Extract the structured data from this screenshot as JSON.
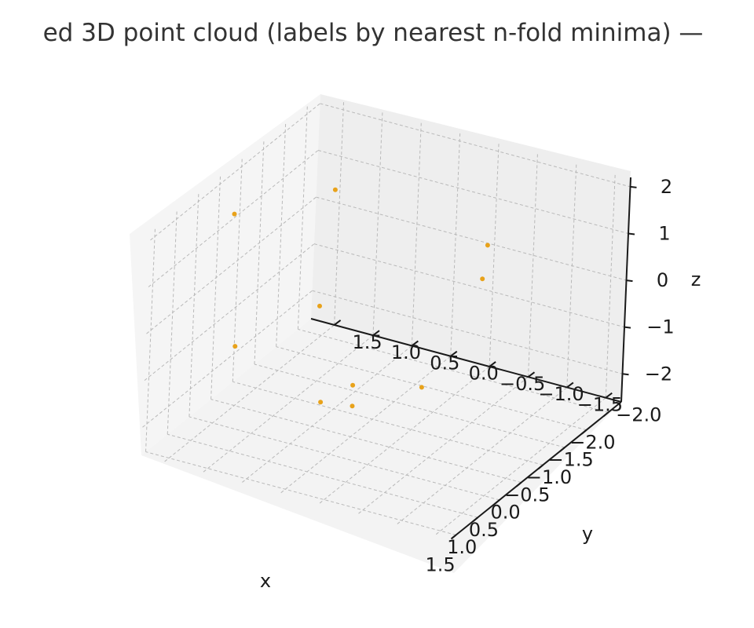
{
  "chart_data": {
    "type": "scatter",
    "projection": "3d",
    "title": "ed 3D point cloud (labels by nearest n-fold minima) —",
    "xlabel": "x",
    "ylabel": "y",
    "zlabel": "z",
    "xlim": [
      -2.3,
      1.6
    ],
    "ylim": [
      -2.2,
      1.8
    ],
    "zlim": [
      -2.6,
      2.2
    ],
    "x_ticks": [
      "−2.0",
      "−1.5",
      "−1.0",
      "−0.5",
      "0.0",
      "0.5",
      "1.0",
      "1.5"
    ],
    "y_ticks": [
      "−2.0",
      "−1.5",
      "−1.0",
      "−0.5",
      "0.0",
      "0.5",
      "1.0",
      "1.5"
    ],
    "z_ticks": [
      "−2",
      "−1",
      "0",
      "1",
      "2"
    ],
    "grid": true,
    "pane_color": "#f2f2f2",
    "marker_color": "#e8a21a",
    "points": [
      {
        "x": -1.35,
        "y": 1.05,
        "z": 1.2
      },
      {
        "x": 0.0,
        "y": 1.6,
        "z": 1.45
      },
      {
        "x": 0.6,
        "y": 1.2,
        "z": -0.75
      },
      {
        "x": 0.75,
        "y": 0.0,
        "z": -1.3
      },
      {
        "x": 0.0,
        "y": 0.0,
        "z": -1.5
      },
      {
        "x": -1.0,
        "y": 1.0,
        "z": -1.0
      },
      {
        "x": -1.3,
        "y": -0.9,
        "z": 0.2
      },
      {
        "x": -1.95,
        "y": -0.6,
        "z": 0.3
      },
      {
        "x": 0.55,
        "y": -0.3,
        "z": -1.4
      },
      {
        "x": -0.15,
        "y": -0.8,
        "z": -1.3
      }
    ]
  }
}
